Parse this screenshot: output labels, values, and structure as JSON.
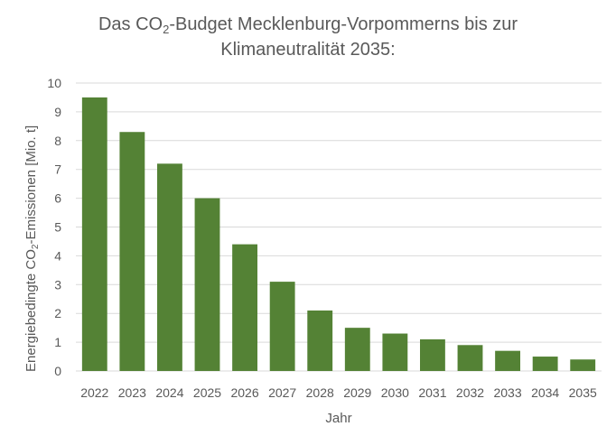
{
  "chart_data": {
    "type": "bar",
    "title": {
      "line1_prefix": "Das CO",
      "line1_sub": "2",
      "line1_suffix": "-Budget Mecklenburg-Vorpommerns bis zur",
      "line2": "Klimaneutralität 2035:"
    },
    "xlabel": "Jahr",
    "ylabel": {
      "prefix": "Energiebedingte CO",
      "sub": "2",
      "suffix": "-Emissionen [Mio. t]"
    },
    "categories": [
      "2022",
      "2023",
      "2024",
      "2025",
      "2026",
      "2027",
      "2028",
      "2029",
      "2030",
      "2031",
      "2032",
      "2033",
      "2034",
      "2035"
    ],
    "values": [
      9.5,
      8.3,
      7.2,
      6.0,
      4.4,
      3.1,
      2.1,
      1.5,
      1.3,
      1.1,
      0.9,
      0.7,
      0.5,
      0.4
    ],
    "ylim": [
      0,
      10
    ],
    "yticks": [
      0,
      1,
      2,
      3,
      4,
      5,
      6,
      7,
      8,
      9,
      10
    ],
    "grid": true,
    "legend": "none",
    "colors": {
      "bar": "#548235",
      "grid": "#d9d9d9",
      "text": "#595959"
    }
  }
}
